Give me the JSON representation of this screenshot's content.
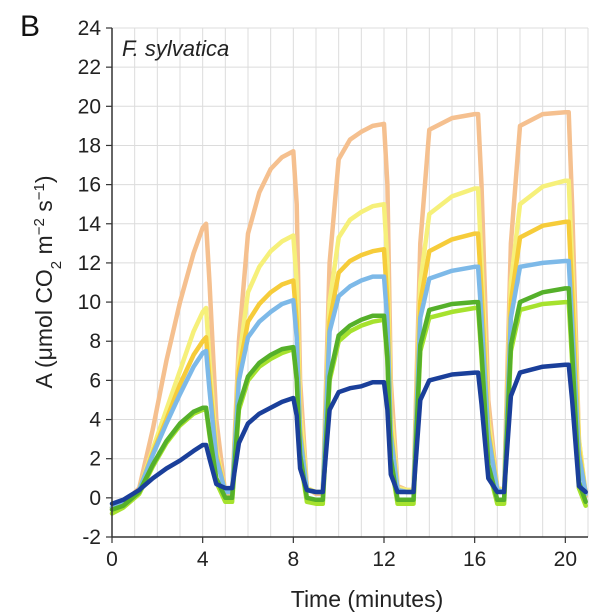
{
  "chart_data": {
    "type": "line",
    "panel_label": "B",
    "annotation": "F. sylvatica",
    "xlabel": "Time (minutes)",
    "ylabel": {
      "prefix": "A (μmol CO",
      "sub": "2",
      "mid": " m",
      "sup1": "−2",
      "mid2": " s",
      "sup2": "−1",
      "suffix": ")"
    },
    "xlim": [
      0,
      21
    ],
    "ylim": [
      -2,
      24
    ],
    "x_ticks": [
      0,
      4,
      8,
      12,
      16,
      20
    ],
    "y_ticks": [
      -2,
      0,
      2,
      4,
      6,
      8,
      10,
      12,
      14,
      16,
      18,
      20,
      22,
      24
    ],
    "x_tick_labels": [
      "0",
      "4",
      "8",
      "12",
      "16",
      "20"
    ],
    "y_tick_labels": [
      "-2",
      "0",
      "2",
      "4",
      "6",
      "8",
      "10",
      "12",
      "14",
      "16",
      "18",
      "20",
      "22",
      "24"
    ],
    "grid": true,
    "legend": "none",
    "series": [
      {
        "color": "#f5c08f",
        "x": [
          0,
          0.5,
          1.2,
          1.8,
          2.4,
          3.0,
          3.6,
          4.0,
          4.15,
          4.3,
          4.6,
          5.0,
          5.3,
          5.6,
          6.0,
          6.5,
          7.0,
          7.5,
          8.0,
          8.15,
          8.3,
          8.6,
          9.0,
          9.3,
          9.6,
          10.0,
          10.5,
          11.0,
          11.5,
          12.0,
          12.15,
          12.3,
          12.6,
          13.0,
          13.3,
          13.6,
          14.0,
          15.0,
          16.0,
          16.15,
          16.3,
          16.6,
          17.0,
          17.3,
          17.6,
          18.0,
          19.0,
          20.0,
          20.15,
          20.3,
          20.6,
          20.9
        ],
        "y": [
          -0.6,
          -0.3,
          0.5,
          3.5,
          7.0,
          10.0,
          12.5,
          13.8,
          14.0,
          11.0,
          4.0,
          0.2,
          0.1,
          8.0,
          13.5,
          15.6,
          16.8,
          17.4,
          17.7,
          15.0,
          6.0,
          0.5,
          0.2,
          0.2,
          12.0,
          17.3,
          18.3,
          18.7,
          19.0,
          19.1,
          16.0,
          6.0,
          0.6,
          0.4,
          0.4,
          13.0,
          18.8,
          19.4,
          19.6,
          19.6,
          16.0,
          5.0,
          0.5,
          0.4,
          13.0,
          19.0,
          19.6,
          19.7,
          19.7,
          15.0,
          3.0,
          0.1
        ]
      },
      {
        "color": "#f6f07a",
        "x": [
          0,
          0.5,
          1.2,
          1.8,
          2.4,
          3.0,
          3.6,
          4.0,
          4.15,
          4.3,
          4.6,
          5.0,
          5.3,
          5.6,
          6.0,
          6.5,
          7.0,
          7.5,
          8.0,
          8.15,
          8.3,
          8.6,
          9.0,
          9.3,
          9.6,
          10.0,
          10.5,
          11.0,
          11.5,
          12.0,
          12.15,
          12.3,
          12.6,
          13.0,
          13.3,
          13.6,
          14.0,
          15.0,
          16.0,
          16.15,
          16.3,
          16.6,
          17.0,
          17.3,
          17.6,
          18.0,
          19.0,
          20.0,
          20.15,
          20.3,
          20.6,
          20.9
        ],
        "y": [
          -0.5,
          -0.3,
          0.4,
          2.5,
          4.5,
          6.5,
          8.5,
          9.5,
          9.7,
          7.0,
          2.5,
          0.3,
          0.3,
          7.0,
          10.5,
          11.8,
          12.6,
          13.1,
          13.4,
          11.0,
          4.5,
          0.5,
          0.3,
          0.3,
          10.0,
          13.3,
          14.2,
          14.6,
          14.9,
          15.0,
          12.0,
          4.5,
          0.5,
          0.4,
          0.4,
          11.0,
          14.5,
          15.4,
          15.8,
          15.8,
          12.0,
          4.0,
          0.5,
          0.4,
          11.0,
          15.0,
          15.9,
          16.2,
          16.2,
          12.0,
          3.0,
          0.2
        ]
      },
      {
        "color": "#f6cc3a",
        "x": [
          0,
          0.5,
          1.2,
          1.8,
          2.4,
          3.0,
          3.6,
          4.0,
          4.15,
          4.3,
          4.6,
          5.0,
          5.3,
          5.6,
          6.0,
          6.5,
          7.0,
          7.5,
          8.0,
          8.15,
          8.3,
          8.6,
          9.0,
          9.3,
          9.6,
          10.0,
          10.5,
          11.0,
          11.5,
          12.0,
          12.15,
          12.3,
          12.6,
          13.0,
          13.3,
          13.6,
          14.0,
          15.0,
          16.0,
          16.15,
          16.3,
          16.6,
          17.0,
          17.3,
          17.6,
          18.0,
          19.0,
          20.0,
          20.15,
          20.3,
          20.6,
          20.9
        ],
        "y": [
          -0.5,
          -0.3,
          0.4,
          2.3,
          4.0,
          5.8,
          7.3,
          8.0,
          8.2,
          6.0,
          2.2,
          0.3,
          0.3,
          6.5,
          9.0,
          9.9,
          10.5,
          10.9,
          11.1,
          9.0,
          3.5,
          0.4,
          0.3,
          0.3,
          9.0,
          11.5,
          12.1,
          12.4,
          12.6,
          12.7,
          10.0,
          3.5,
          0.4,
          0.3,
          0.3,
          10.0,
          12.6,
          13.2,
          13.5,
          13.5,
          10.5,
          3.5,
          0.4,
          0.3,
          10.0,
          13.3,
          13.9,
          14.1,
          14.1,
          10.5,
          2.5,
          0.2
        ]
      },
      {
        "color": "#7db9e8",
        "x": [
          0,
          0.5,
          1.2,
          1.8,
          2.4,
          3.0,
          3.6,
          4.0,
          4.15,
          4.3,
          4.6,
          5.0,
          5.3,
          5.6,
          6.0,
          6.5,
          7.0,
          7.5,
          8.0,
          8.15,
          8.3,
          8.6,
          9.0,
          9.3,
          9.6,
          10.0,
          10.5,
          11.0,
          11.5,
          12.0,
          12.15,
          12.3,
          12.6,
          13.0,
          13.3,
          13.6,
          14.0,
          15.0,
          16.0,
          16.15,
          16.3,
          16.6,
          17.0,
          17.3,
          17.6,
          18.0,
          19.0,
          20.0,
          20.15,
          20.3,
          20.6,
          20.9
        ],
        "y": [
          -0.5,
          -0.3,
          0.4,
          2.2,
          3.8,
          5.3,
          6.7,
          7.4,
          7.5,
          5.5,
          2.0,
          0.3,
          0.3,
          6.0,
          8.2,
          9.0,
          9.5,
          9.9,
          10.1,
          8.2,
          3.2,
          0.4,
          0.3,
          0.3,
          8.5,
          10.3,
          10.8,
          11.1,
          11.3,
          11.3,
          9.0,
          3.2,
          0.4,
          0.3,
          0.3,
          9.2,
          11.2,
          11.6,
          11.8,
          11.8,
          9.2,
          3.2,
          0.4,
          0.3,
          9.2,
          11.8,
          12.0,
          12.1,
          12.1,
          9.0,
          2.2,
          0.2
        ]
      },
      {
        "color": "#a6e22e",
        "x": [
          0,
          0.5,
          1.2,
          1.8,
          2.4,
          3.0,
          3.6,
          4.0,
          4.15,
          4.3,
          4.6,
          5.0,
          5.3,
          5.6,
          6.0,
          6.5,
          7.0,
          7.5,
          8.0,
          8.15,
          8.3,
          8.6,
          9.0,
          9.3,
          9.6,
          10.0,
          10.5,
          11.0,
          11.5,
          12.0,
          12.15,
          12.3,
          12.6,
          13.0,
          13.3,
          13.6,
          14.0,
          15.0,
          16.0,
          16.15,
          16.3,
          16.6,
          17.0,
          17.3,
          17.6,
          18.0,
          19.0,
          20.0,
          20.15,
          20.3,
          20.6,
          20.9
        ],
        "y": [
          -0.8,
          -0.5,
          0.2,
          1.6,
          2.8,
          3.7,
          4.3,
          4.5,
          4.5,
          3.2,
          0.8,
          -0.2,
          -0.2,
          4.5,
          6.0,
          6.7,
          7.1,
          7.4,
          7.6,
          6.0,
          2.0,
          -0.2,
          -0.3,
          -0.3,
          6.0,
          8.0,
          8.5,
          8.8,
          9.0,
          9.1,
          7.0,
          1.8,
          -0.3,
          -0.3,
          -0.3,
          7.5,
          9.2,
          9.5,
          9.7,
          9.7,
          7.2,
          1.5,
          -0.3,
          -0.3,
          7.5,
          9.6,
          9.9,
          10.0,
          10.0,
          7.0,
          0.5,
          -0.4
        ]
      },
      {
        "color": "#55b02a",
        "x": [
          0,
          0.5,
          1.2,
          1.8,
          2.4,
          3.0,
          3.6,
          4.0,
          4.15,
          4.3,
          4.6,
          5.0,
          5.3,
          5.6,
          6.0,
          6.5,
          7.0,
          7.5,
          8.0,
          8.15,
          8.3,
          8.6,
          9.0,
          9.3,
          9.6,
          10.0,
          10.5,
          11.0,
          11.5,
          12.0,
          12.15,
          12.3,
          12.6,
          13.0,
          13.3,
          13.6,
          14.0,
          15.0,
          16.0,
          16.15,
          16.3,
          16.6,
          17.0,
          17.3,
          17.6,
          18.0,
          19.0,
          20.0,
          20.15,
          20.3,
          20.6,
          20.9
        ],
        "y": [
          -0.6,
          -0.4,
          0.3,
          1.7,
          2.9,
          3.8,
          4.4,
          4.6,
          4.6,
          3.3,
          1.0,
          0.0,
          0.0,
          4.7,
          6.2,
          6.9,
          7.3,
          7.6,
          7.7,
          6.1,
          2.2,
          0.0,
          -0.1,
          -0.1,
          6.2,
          8.3,
          8.8,
          9.1,
          9.3,
          9.3,
          7.2,
          2.0,
          -0.1,
          -0.1,
          -0.1,
          7.8,
          9.6,
          9.9,
          10.0,
          10.0,
          7.5,
          1.7,
          -0.1,
          -0.1,
          7.8,
          10.0,
          10.5,
          10.7,
          10.7,
          7.5,
          0.8,
          -0.2
        ]
      },
      {
        "color": "#1a3f9a",
        "x": [
          0,
          0.5,
          1.2,
          1.8,
          2.4,
          3.0,
          3.6,
          4.0,
          4.15,
          4.3,
          4.6,
          5.0,
          5.3,
          5.6,
          6.0,
          6.5,
          7.0,
          7.5,
          8.0,
          8.15,
          8.3,
          8.6,
          9.0,
          9.3,
          9.6,
          10.0,
          10.5,
          11.0,
          11.5,
          12.0,
          12.15,
          12.3,
          12.6,
          13.0,
          13.3,
          13.6,
          14.0,
          15.0,
          16.0,
          16.15,
          16.3,
          16.6,
          17.0,
          17.3,
          17.6,
          18.0,
          19.0,
          20.0,
          20.15,
          20.3,
          20.6,
          20.9
        ],
        "y": [
          -0.3,
          -0.1,
          0.4,
          1.0,
          1.5,
          1.9,
          2.4,
          2.7,
          2.7,
          2.0,
          0.7,
          0.5,
          0.5,
          2.8,
          3.8,
          4.3,
          4.6,
          4.9,
          5.1,
          4.2,
          1.5,
          0.4,
          0.3,
          0.3,
          4.5,
          5.4,
          5.6,
          5.7,
          5.9,
          5.9,
          4.5,
          1.2,
          0.3,
          0.3,
          0.3,
          5.0,
          6.0,
          6.3,
          6.4,
          6.4,
          4.8,
          1.0,
          0.3,
          0.3,
          5.2,
          6.4,
          6.7,
          6.8,
          6.8,
          5.0,
          0.6,
          0.3
        ]
      }
    ]
  }
}
